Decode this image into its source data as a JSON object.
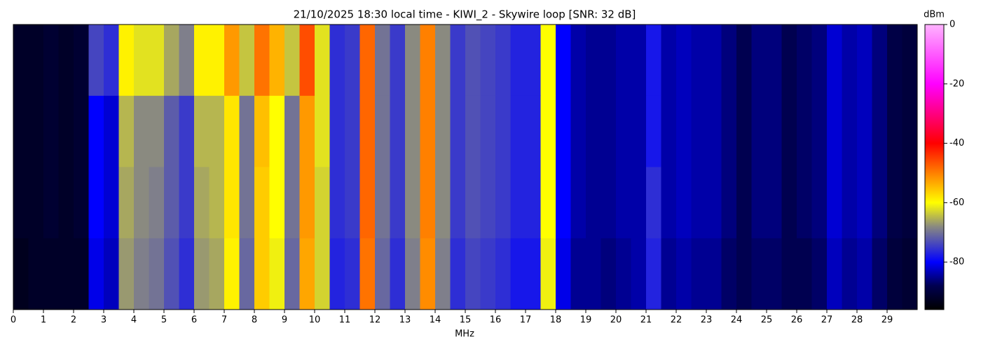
{
  "chart_data": {
    "type": "heatmap",
    "title": "21/10/2025 18:30 local time - KIWI_2 - Skywire loop [SNR: 32 dB]",
    "xlabel": "MHz",
    "xlim": [
      0,
      30
    ],
    "xticks": [
      0,
      1,
      2,
      3,
      4,
      5,
      6,
      7,
      8,
      9,
      10,
      11,
      12,
      13,
      14,
      15,
      16,
      17,
      18,
      19,
      20,
      21,
      22,
      23,
      24,
      25,
      26,
      27,
      28,
      29
    ],
    "colorbar_label": "dBm",
    "clim": [
      -96,
      0
    ],
    "cticks": [
      0,
      -20,
      -40,
      -60,
      -80
    ],
    "colormap": [
      {
        "value": -96,
        "color": "#000000"
      },
      {
        "value": -88,
        "color": "#000050"
      },
      {
        "value": -80,
        "color": "#0000ff"
      },
      {
        "value": -68,
        "color": "#8a8a80"
      },
      {
        "value": -60,
        "color": "#ffff00"
      },
      {
        "value": -40,
        "color": "#ff0000"
      },
      {
        "value": -20,
        "color": "#ff00ff"
      },
      {
        "value": 0,
        "color": "#ffb4ff"
      }
    ],
    "values": [
      [
        -92,
        -92,
        -91,
        -92,
        -91,
        -74,
        -76,
        -59,
        -62,
        -62,
        -66,
        -69,
        -59,
        -59,
        -52,
        -64,
        -49,
        -54,
        -64,
        -46,
        -62,
        -76,
        -75,
        -48,
        -70,
        -75,
        -68,
        -50,
        -68,
        -75,
        -73,
        -74,
        -75,
        -77,
        -77,
        -60,
        -80,
        -84,
        -85,
        -85,
        -84,
        -84,
        -78,
        -84,
        -83,
        -84,
        -84,
        -86,
        -88,
        -86,
        -86,
        -88,
        -87,
        -86,
        -82,
        -84,
        -83,
        -86,
        -89,
        -90
      ],
      [
        -92,
        -92,
        -91,
        -92,
        -91,
        -80,
        -82,
        -65,
        -68,
        -68,
        -72,
        -75,
        -65,
        -65,
        -58,
        -70,
        -55,
        -60,
        -70,
        -52,
        -62,
        -76,
        -75,
        -48,
        -70,
        -75,
        -68,
        -50,
        -68,
        -75,
        -73,
        -74,
        -75,
        -77,
        -77,
        -60,
        -80,
        -84,
        -85,
        -85,
        -84,
        -84,
        -78,
        -84,
        -83,
        -84,
        -84,
        -86,
        -88,
        -86,
        -86,
        -88,
        -87,
        -86,
        -82,
        -84,
        -83,
        -86,
        -89,
        -90
      ],
      [
        -92,
        -92,
        -91,
        -92,
        -91,
        -80,
        -82,
        -66,
        -68,
        -69,
        -72,
        -75,
        -66,
        -65,
        -58,
        -70,
        -56,
        -60,
        -70,
        -52,
        -63,
        -76,
        -75,
        -48,
        -70,
        -75,
        -68,
        -50,
        -68,
        -75,
        -73,
        -74,
        -75,
        -77,
        -77,
        -60,
        -80,
        -84,
        -85,
        -85,
        -84,
        -84,
        -76,
        -84,
        -83,
        -84,
        -84,
        -86,
        -88,
        -86,
        -86,
        -88,
        -87,
        -86,
        -82,
        -84,
        -83,
        -86,
        -89,
        -90
      ],
      [
        -93,
        -92,
        -92,
        -92,
        -92,
        -81,
        -83,
        -67,
        -69,
        -70,
        -73,
        -76,
        -67,
        -66,
        -59,
        -71,
        -56,
        -61,
        -71,
        -53,
        -63,
        -77,
        -76,
        -49,
        -71,
        -76,
        -69,
        -51,
        -69,
        -76,
        -74,
        -75,
        -76,
        -78,
        -78,
        -61,
        -81,
        -85,
        -85,
        -86,
        -85,
        -84,
        -77,
        -85,
        -84,
        -85,
        -85,
        -87,
        -88,
        -87,
        -87,
        -88,
        -88,
        -87,
        -83,
        -85,
        -84,
        -87,
        -90,
        -91
      ]
    ]
  }
}
